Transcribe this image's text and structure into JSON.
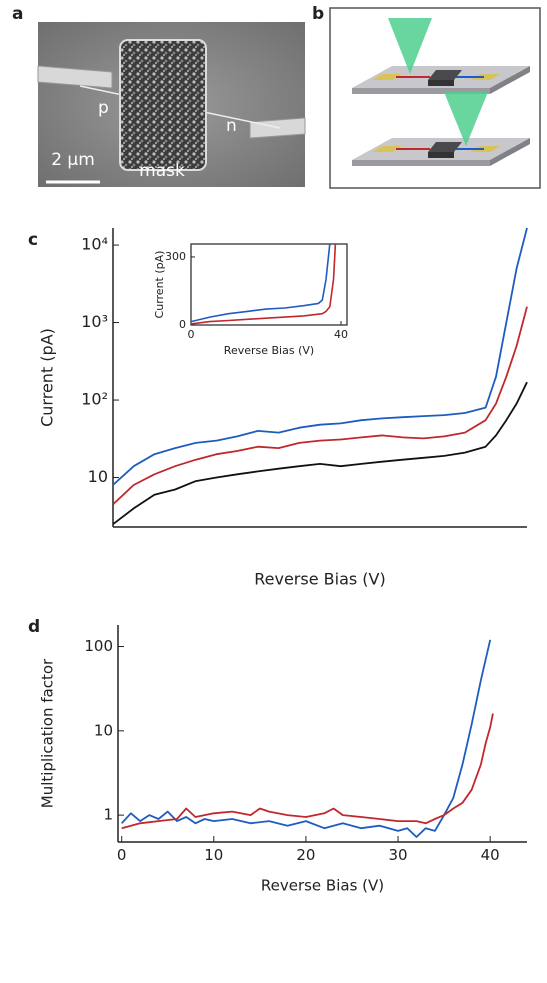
{
  "panel_labels": [
    "a",
    "b",
    "c",
    "d"
  ],
  "image_labels": {
    "p": "p",
    "n": "n",
    "mask": "mask",
    "scale_bar": "2 µm"
  },
  "chart_data": [
    {
      "type": "line",
      "scale": "log",
      "x_label": "Reverse Bias (V)",
      "y_label": "Current (pA)",
      "xlim": [
        0,
        40
      ],
      "ylim": [
        2.3,
        16600
      ],
      "yticks": [
        10,
        {
          "value": 100,
          "label": "10²"
        },
        {
          "value": 1000,
          "label": "10³"
        },
        {
          "value": 10000,
          "label": "10⁴"
        }
      ],
      "x": [
        0,
        2,
        4,
        6,
        8,
        10,
        12,
        14,
        16,
        18,
        20,
        22,
        24,
        26,
        28,
        30,
        32,
        34,
        36,
        37,
        38,
        39,
        40
      ],
      "series": [
        {
          "color": "#1f5cc0",
          "values": [
            8,
            14,
            20,
            24,
            28,
            30,
            34,
            40,
            38,
            44,
            48,
            50,
            55,
            58,
            60,
            62,
            64,
            68,
            80,
            200,
            1000,
            5000,
            16600
          ]
        },
        {
          "color": "#c0282d",
          "values": [
            4.5,
            8,
            11,
            14,
            17,
            20,
            22,
            25,
            24,
            28,
            30,
            31,
            33,
            35,
            33,
            32,
            34,
            38,
            55,
            90,
            200,
            500,
            1600
          ]
        },
        {
          "color": "#111111",
          "values": [
            2.5,
            4,
            6,
            7,
            9,
            10,
            11,
            12,
            13,
            14,
            15,
            14,
            15,
            16,
            17,
            18,
            19,
            21,
            25,
            35,
            55,
            90,
            170
          ]
        }
      ]
    },
    {
      "type": "line",
      "scale": "linear",
      "x_label": "Reverse Bias (V)",
      "y_label": "Current (pA)",
      "xlim": [
        0,
        41.6
      ],
      "ylim": [
        0,
        357
      ],
      "xticks": [
        0,
        40
      ],
      "yticks": [
        0,
        300
      ],
      "series": [
        {
          "color": "#1f5cc0",
          "x": [
            0,
            5,
            10,
            15,
            20,
            25,
            30,
            34,
            35,
            36,
            37
          ],
          "values": [
            15,
            35,
            50,
            60,
            70,
            75,
            85,
            95,
            110,
            200,
            357
          ]
        },
        {
          "color": "#c0282d",
          "x": [
            0,
            5,
            10,
            15,
            20,
            25,
            30,
            35,
            36,
            37,
            38,
            38.5
          ],
          "values": [
            5,
            15,
            20,
            25,
            30,
            35,
            40,
            50,
            60,
            80,
            200,
            357
          ]
        }
      ]
    },
    {
      "type": "line",
      "scale": "log",
      "x_label": "Reverse Bias (V)",
      "y_label": "Multiplication factor",
      "xlim": [
        -0.4,
        44
      ],
      "ylim": [
        0.48,
        180
      ],
      "xticks": [
        0,
        10,
        20,
        30,
        40
      ],
      "yticks": [
        1,
        10,
        100
      ],
      "series": [
        {
          "color": "#1f5cc0",
          "x": [
            0,
            1,
            2,
            3,
            4,
            5,
            6,
            7,
            8,
            9,
            10,
            12,
            14,
            16,
            18,
            20,
            22,
            24,
            26,
            28,
            30,
            31,
            32,
            33,
            34,
            35,
            36,
            37,
            38,
            39,
            40
          ],
          "values": [
            0.8,
            1.05,
            0.85,
            1.0,
            0.9,
            1.1,
            0.85,
            0.95,
            0.8,
            0.9,
            0.85,
            0.9,
            0.8,
            0.85,
            0.75,
            0.85,
            0.7,
            0.8,
            0.7,
            0.75,
            0.65,
            0.7,
            0.55,
            0.7,
            0.65,
            1.0,
            1.6,
            4,
            12,
            40,
            120
          ]
        },
        {
          "color": "#c0282d",
          "x": [
            0,
            2,
            4,
            6,
            7,
            8,
            10,
            12,
            14,
            15,
            16,
            18,
            20,
            22,
            23,
            24,
            26,
            28,
            30,
            32,
            33,
            34,
            35,
            36,
            37,
            38,
            39,
            39.5,
            40,
            40.3
          ],
          "values": [
            0.7,
            0.8,
            0.85,
            0.9,
            1.2,
            0.95,
            1.05,
            1.1,
            1.0,
            1.2,
            1.1,
            1.0,
            0.95,
            1.05,
            1.2,
            1.0,
            0.95,
            0.9,
            0.85,
            0.85,
            0.8,
            0.9,
            1.0,
            1.2,
            1.4,
            2,
            4,
            7,
            11,
            16
          ]
        }
      ]
    }
  ]
}
